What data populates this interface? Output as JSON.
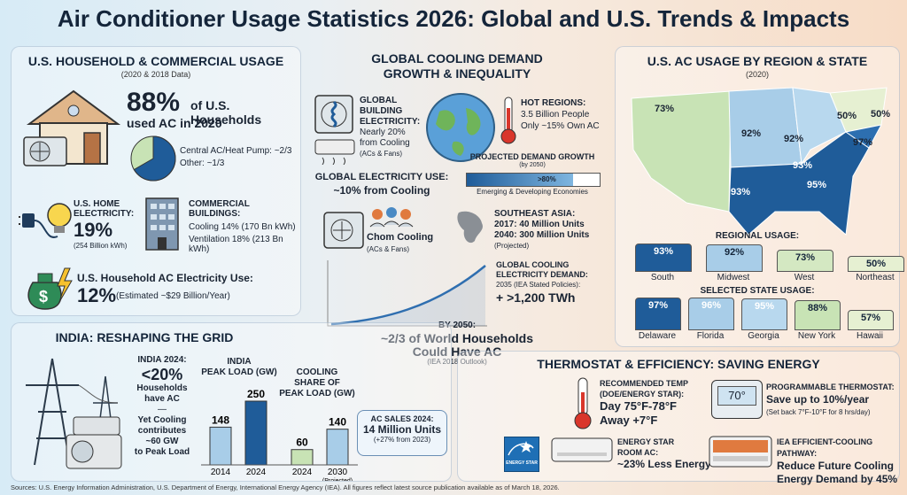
{
  "title": "Air Conditioner Usage Statistics 2026: Global and U.S. Trends & Impacts",
  "household": {
    "heading": "U.S. HOUSEHOLD & COMMERCIAL USAGE",
    "subheading": "(2020 & 2018 Data)",
    "pct": "88%",
    "pct_text_1": "of U.S. Households",
    "pct_text_2": "used AC in 2020",
    "central": "Central AC/Heat Pump: ~2/3",
    "other": "Other: ~1/3",
    "home_elec_label_1": "U.S. HOME",
    "home_elec_label_2": "ELECTRICITY:",
    "home_elec_pct": "19%",
    "home_elec_note": "(254 Billion kWh)",
    "comm_label_1": "COMMERCIAL",
    "comm_label_2": "BUILDINGS:",
    "comm_cooling": "Cooling 14% (170 Bn kWh)",
    "comm_vent": "Ventilation 18% (213 Bn kWh)",
    "ac_elec_label": "U.S. Household AC Electricity Use:",
    "ac_elec_pct": "12%",
    "ac_elec_note": "(Estimated ~$29 Billion/Year)"
  },
  "global": {
    "heading_1": "GLOBAL COOLING DEMAND",
    "heading_2": "GROWTH & INEQUALITY",
    "bldg_1": "GLOBAL",
    "bldg_2": "BUILDING",
    "bldg_3": "ELECTRICITY:",
    "bldg_4": "Nearly 20%",
    "bldg_5": "from Cooling",
    "bldg_6": "(ACs & Fans)",
    "hot_1": "HOT REGIONS:",
    "hot_2": "3.5 Billion People",
    "hot_3": "Only ~15% Own AC",
    "proj_1": "PROJECTED DEMAND GROWTH",
    "proj_2": "(by 2050)",
    "proj_bar": ">80%",
    "proj_3": "Emerging & Developing Economies",
    "use_1": "GLOBAL ELECTRICITY USE:",
    "use_2": "~10% from Cooling",
    "chom_1": "Chom Cooling",
    "chom_2": "(ACs & Fans)",
    "sea_1": "SOUTHEAST ASIA:",
    "sea_2": "2017: 40 Million Units",
    "sea_3": "2040: 300 Million Units",
    "sea_4": "(Projected)",
    "dem_1": "GLOBAL COOLING",
    "dem_2": "ELECTRICITY DEMAND:",
    "dem_3": "2035 (IEA Stated Policies):",
    "dem_4": "+ >1,200 TWh",
    "by_1": "BY 2050:",
    "by_2": "~2/3 of World Households",
    "by_3": "Could Have AC",
    "by_4": "(IEA 2018 Outlook)"
  },
  "region": {
    "heading": "U.S. AC USAGE BY REGION & STATE",
    "subheading": "(2020)",
    "map_labels": [
      "73%",
      "92%",
      "92%",
      "50%",
      "50%",
      "97%",
      "93%",
      "95%",
      "93%"
    ],
    "regional_title": "REGIONAL USAGE:",
    "regional": [
      {
        "label": "South",
        "value": "93%",
        "color": "#1f5c99"
      },
      {
        "label": "Midwest",
        "value": "92%",
        "color": "#a8cde8"
      },
      {
        "label": "West",
        "value": "73%",
        "color": "#d4e8c2"
      },
      {
        "label": "Northeast",
        "value": "50%",
        "color": "#e6f0d2"
      }
    ],
    "state_title": "SELECTED STATE USAGE:",
    "states": [
      {
        "label": "Delaware",
        "value": "97%",
        "color": "#1f5c99"
      },
      {
        "label": "Florida",
        "value": "96%",
        "color": "#a8cde8"
      },
      {
        "label": "Georgia",
        "value": "95%",
        "color": "#b8d8ee"
      },
      {
        "label": "New York",
        "value": "88%",
        "color": "#c8e3b5"
      },
      {
        "label": "Hawaii",
        "value": "57%",
        "color": "#e6f0d2"
      }
    ]
  },
  "india": {
    "heading": "INDIA: RESHAPING THE GRID",
    "t1": "INDIA 2024:",
    "t2": "<20%",
    "t3": "Households",
    "t4": "have AC",
    "t5": "—",
    "t6": "Yet Cooling",
    "t7": "contributes",
    "t8": "~60 GW",
    "t9": "to Peak Load",
    "peak_title_1": "INDIA",
    "peak_title_2": "PEAK LOAD (GW)",
    "share_title_1": "COOLING",
    "share_title_2": "SHARE OF",
    "share_title_3": "PEAK LOAD (GW)",
    "sales_1": "AC SALES 2024:",
    "sales_2": "14 Million Units",
    "sales_3": "(+27% from 2023)",
    "projected": "(Projected)"
  },
  "chart_data": [
    {
      "type": "bar",
      "title": "INDIA PEAK LOAD (GW)",
      "categories": [
        "2014",
        "2024"
      ],
      "values": [
        148,
        250
      ],
      "ylim": [
        0,
        260
      ]
    },
    {
      "type": "bar",
      "title": "COOLING SHARE OF PEAK LOAD (GW)",
      "categories": [
        "2024",
        "2030"
      ],
      "values": [
        60,
        140
      ],
      "ylim": [
        0,
        260
      ]
    }
  ],
  "thermo": {
    "heading": "THERMOSTAT & EFFICIENCY: SAVING ENERGY",
    "rec_1": "RECOMMENDED TEMP",
    "rec_2": "(DOE/ENERGY STAR):",
    "rec_3": "Day 75°F-78°F",
    "rec_4": "Away +7°F",
    "display": "70°",
    "prog_1": "PROGRAMMABLE THERMOSTAT:",
    "prog_2": "Save up to 10%/year",
    "prog_3": "(Set back 7°F-10°F for 8 hrs/day)",
    "es_1": "ENERGY STAR",
    "es_2": "ROOM AC:",
    "es_3": "~23% Less Energy",
    "iea_1": "IEA EFFICIENT-COOLING PATHWAY:",
    "iea_2": "Reduce Future Cooling",
    "iea_3": "Energy Demand by 45%",
    "logo": "ENERGY STAR"
  },
  "footer": "Sources: U.S. Energy Information Administration, U.S. Department of Energy, International Energy Agency (IEA). All figures reflect latest source publication available as of March 18, 2026."
}
